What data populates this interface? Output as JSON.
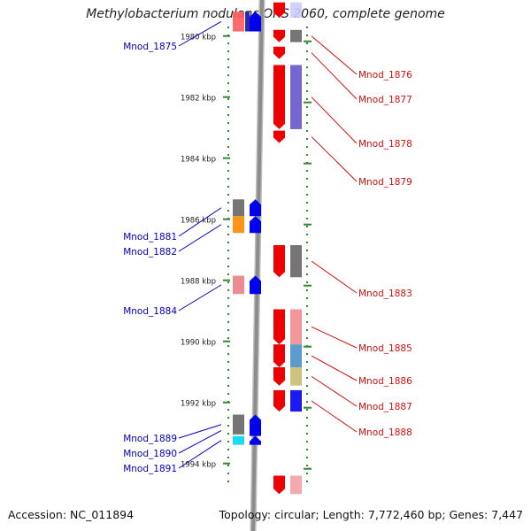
{
  "title": "Methylobacterium nodulans ORS 2060, complete genome",
  "footer": {
    "accession": "Accession: NC_011894",
    "topology": "Topology: circular; Length: 7,772,460 bp; Genes: 7,447"
  },
  "scale": {
    "start_kbp": 1979.4,
    "ticks": [
      {
        "kbp": 1980,
        "label": "1980 kbp"
      },
      {
        "kbp": 1982,
        "label": "1982 kbp"
      },
      {
        "kbp": 1984,
        "label": "1984 kbp"
      },
      {
        "kbp": 1986,
        "label": "1986 kbp"
      },
      {
        "kbp": 1988,
        "label": "1988 kbp"
      },
      {
        "kbp": 1990,
        "label": "1990 kbp"
      },
      {
        "kbp": 1992,
        "label": "1992 kbp"
      },
      {
        "kbp": 1994,
        "label": "1994 kbp"
      }
    ]
  },
  "colors": {
    "forward_label": "#0000c0",
    "reverse_label": "#d01010",
    "tick": "#2a8a2a",
    "backbone": "#8c8c8c",
    "red": "#ee0000",
    "blue": "#0000ee"
  },
  "genes": [
    {
      "name": "Mnod_1875",
      "strand": "forward",
      "start": 1979.2,
      "end": 1979.85,
      "cog": "#ff5a5a",
      "cog2": "#2b2bb0"
    },
    {
      "name": "Mnod_1876",
      "strand": "reverse",
      "start": 1979.8,
      "end": 1980.2,
      "cog": "#666666"
    },
    {
      "name": "Mnod_1877",
      "strand": "reverse",
      "start": 1980.35,
      "end": 1980.75,
      "cog": null
    },
    {
      "name": "Mnod_1878",
      "strand": "reverse",
      "start": 1980.95,
      "end": 1983.05,
      "cog": "#6655cc"
    },
    {
      "name": "Mnod_1879",
      "strand": "reverse",
      "start": 1983.1,
      "end": 1983.5,
      "cog": null
    },
    {
      "name": "Mnod_1881",
      "strand": "forward",
      "start": 1985.35,
      "end": 1985.9,
      "cog": "#666666"
    },
    {
      "name": "Mnod_1882",
      "strand": "forward",
      "start": 1985.9,
      "end": 1986.45,
      "cog": "#ff8800"
    },
    {
      "name": "Mnod_1883",
      "strand": "reverse",
      "start": 1986.85,
      "end": 1987.9,
      "cog": "#666666"
    },
    {
      "name": "Mnod_1884",
      "strand": "forward",
      "start": 1987.85,
      "end": 1988.45,
      "cog": "#e87f86"
    },
    {
      "name": "Mnod_1885",
      "strand": "reverse",
      "start": 1988.95,
      "end": 1990.1,
      "cog": "#f08c90"
    },
    {
      "name": "Mnod_1886",
      "strand": "reverse",
      "start": 1990.1,
      "end": 1990.85,
      "cog": "#4a90c8"
    },
    {
      "name": "Mnod_1887",
      "strand": "reverse",
      "start": 1990.85,
      "end": 1991.45,
      "cog": "#c8bc70"
    },
    {
      "name": "Mnod_1888",
      "strand": "reverse",
      "start": 1991.6,
      "end": 1992.3,
      "cog": "#0000ee"
    },
    {
      "name": "Mnod_1889",
      "strand": "forward",
      "start": 1992.4,
      "end": 1993.05,
      "cog": "#666666"
    },
    {
      "name": "Mnod_1890",
      "strand": "forward",
      "start": 1992.75,
      "end": 1993.1,
      "cog": null
    },
    {
      "name": "Mnod_1891",
      "strand": "forward",
      "start": 1993.1,
      "end": 1993.35,
      "cog": "#00d8f0"
    }
  ],
  "extra_features": [
    {
      "strand": "reverse",
      "start": 1978.9,
      "end": 1979.4,
      "cog": "#ccccff"
    },
    {
      "strand": "reverse",
      "start": 1994.4,
      "end": 1995.0,
      "cog": "#f4a0a8"
    }
  ]
}
